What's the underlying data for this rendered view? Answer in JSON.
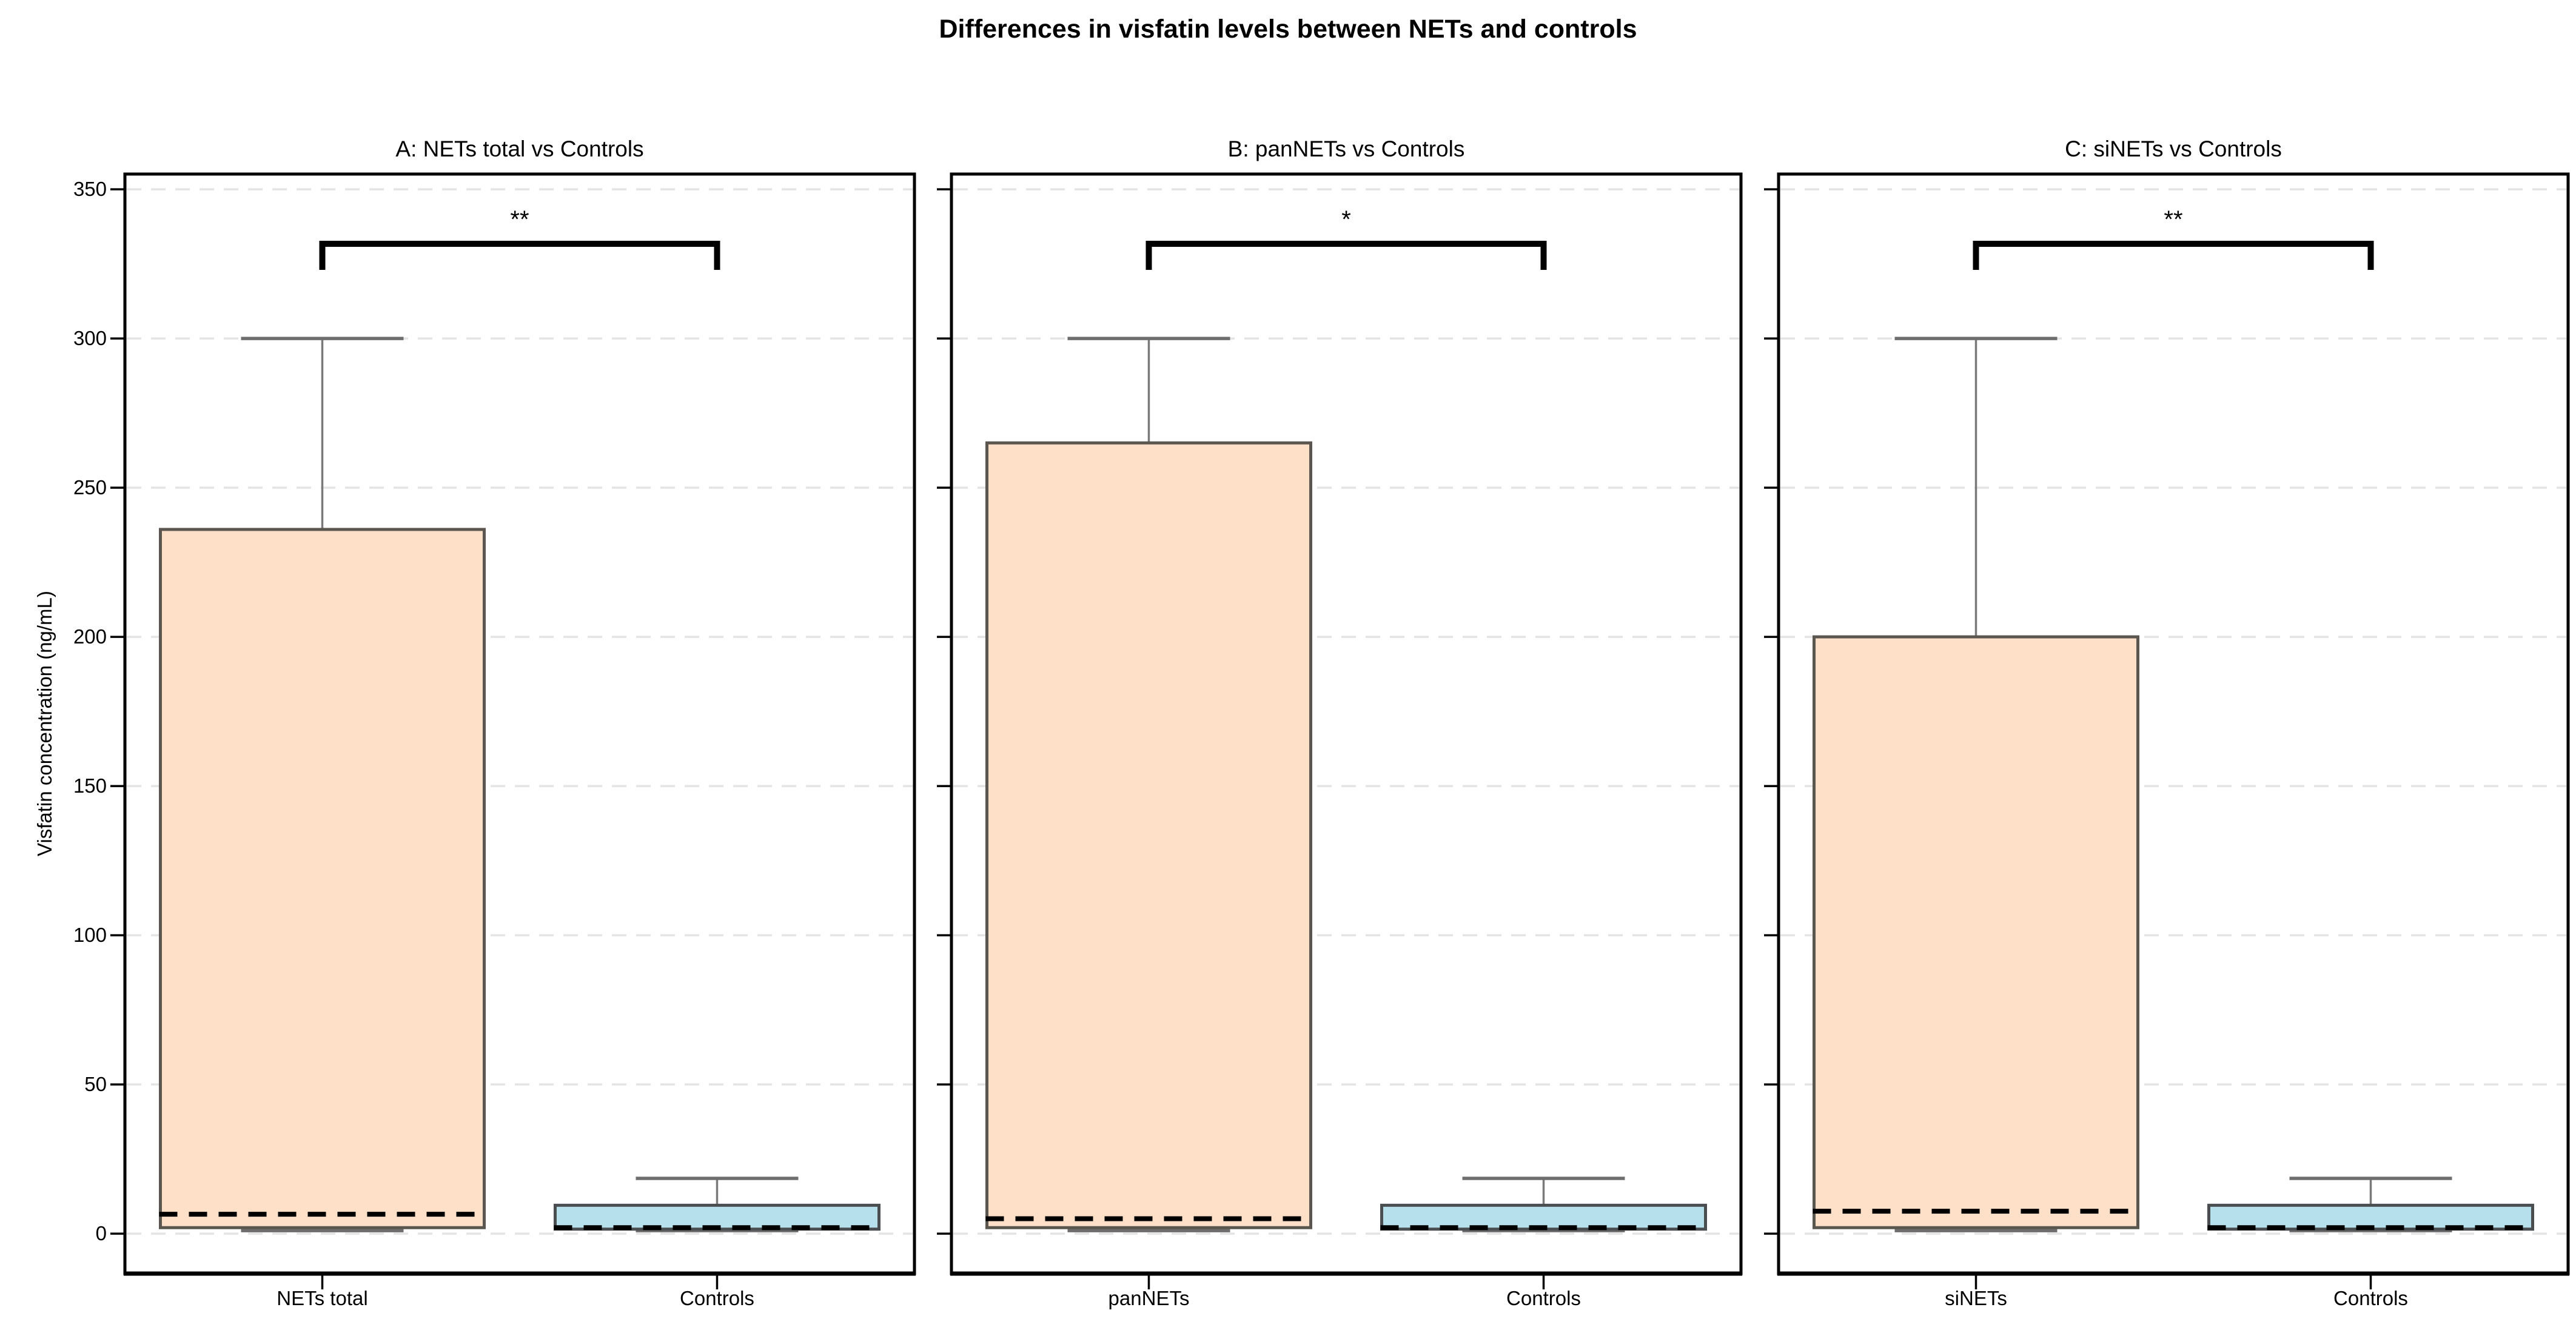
{
  "figure": {
    "title": "Differences in visfatin levels between NETs and controls",
    "ylabel": "Visfatin concentration (ng/mL)"
  },
  "colors": {
    "background": "#ffffff",
    "net_fill": "#FDE0C7",
    "net_edge": "#5b564f",
    "control_fill": "#B5E0EC",
    "control_edge": "#4a4e50",
    "whisker": "#7a7a7a",
    "cap": "#6e6e6e",
    "median": "#000000",
    "grid": "#e4e4e4",
    "spine": "#000000",
    "bracket": "#000000"
  },
  "axes": {
    "ylim": [
      -13.4,
      355.1
    ],
    "yticks": [
      0,
      50,
      100,
      150,
      200,
      250,
      300,
      350
    ],
    "grid": "dashed horizontal"
  },
  "chart_data": [
    {
      "type": "box",
      "panel": "A",
      "title": "A: NETs total vs Controls",
      "categories": [
        "NETs total",
        "Controls"
      ],
      "significance": "**",
      "series": [
        {
          "name": "NETs total",
          "group": "net",
          "whisker_low": 1,
          "q1": 2,
          "median": 6.5,
          "q3": 236,
          "whisker_high": 300
        },
        {
          "name": "Controls",
          "group": "control",
          "whisker_low": 1,
          "q1": 1.5,
          "median": 2,
          "q3": 9.5,
          "whisker_high": 18.5
        }
      ]
    },
    {
      "type": "box",
      "panel": "B",
      "title": "B: panNETs vs Controls",
      "categories": [
        "panNETs",
        "Controls"
      ],
      "significance": "*",
      "series": [
        {
          "name": "panNETs",
          "group": "net",
          "whisker_low": 1,
          "q1": 2,
          "median": 5,
          "q3": 265,
          "whisker_high": 300
        },
        {
          "name": "Controls",
          "group": "control",
          "whisker_low": 1,
          "q1": 1.5,
          "median": 2,
          "q3": 9.5,
          "whisker_high": 18.5
        }
      ]
    },
    {
      "type": "box",
      "panel": "C",
      "title": "C: siNETs vs Controls",
      "categories": [
        "siNETs",
        "Controls"
      ],
      "significance": "**",
      "series": [
        {
          "name": "siNETs",
          "group": "net",
          "whisker_low": 1,
          "q1": 2,
          "median": 7.5,
          "q3": 200,
          "whisker_high": 300
        },
        {
          "name": "Controls",
          "group": "control",
          "whisker_low": 1,
          "q1": 1.5,
          "median": 2,
          "q3": 9.5,
          "whisker_high": 18.5
        }
      ]
    }
  ]
}
